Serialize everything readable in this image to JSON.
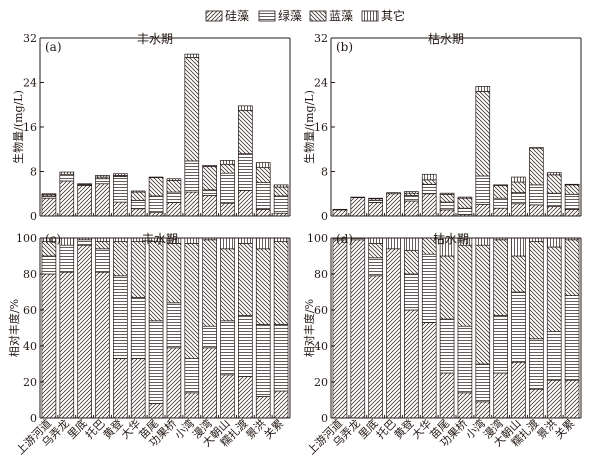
{
  "legend": {
    "items": [
      {
        "name": "硅藻",
        "pattern": "diag-fwd"
      },
      {
        "name": "绿藻",
        "pattern": "horiz"
      },
      {
        "name": "蓝藻",
        "pattern": "diag-back"
      },
      {
        "name": "其它",
        "pattern": "vert"
      }
    ]
  },
  "chart_data": [
    {
      "id": "a",
      "type": "bar",
      "stacked": true,
      "panel_label": "(a)",
      "title": "丰水期",
      "ylabel": "生物量/(mg/L)",
      "ylim": [
        0,
        32
      ],
      "yticks": [
        0,
        8,
        16,
        24,
        32
      ],
      "categories": [
        "上游河道",
        "乌弄龙",
        "里底",
        "托巴",
        "黄登",
        "大华",
        "苗尾",
        "功果桥",
        "小湾",
        "漫湾",
        "大朝山",
        "糯扎渡",
        "景洪",
        "关累"
      ],
      "series": [
        {
          "name": "硅藻",
          "values": [
            3.2,
            6.3,
            5.5,
            5.8,
            2.5,
            1.3,
            0.6,
            2.4,
            4.3,
            3.7,
            2.3,
            4.6,
            1.2,
            0.5
          ]
        },
        {
          "name": "绿藻",
          "values": [
            0.4,
            1.2,
            0.2,
            0.9,
            4.6,
            1.5,
            3.0,
            1.9,
            5.6,
            1.0,
            5.4,
            6.6,
            4.8,
            3.1
          ]
        },
        {
          "name": "蓝藻",
          "values": [
            0.3,
            0.0,
            0.0,
            0.3,
            0.2,
            1.5,
            3.3,
            2.1,
            18.6,
            4.2,
            1.6,
            7.8,
            2.7,
            1.6
          ]
        },
        {
          "name": "其它",
          "values": [
            0.1,
            0.4,
            0.1,
            0.3,
            0.3,
            0.2,
            0.1,
            0.3,
            0.6,
            0.2,
            0.7,
            0.8,
            0.9,
            0.4
          ]
        }
      ]
    },
    {
      "id": "b",
      "type": "bar",
      "stacked": true,
      "panel_label": "(b)",
      "title": "枯水期",
      "ylabel": "生物量/(mg/L)",
      "ylim": [
        0,
        32
      ],
      "yticks": [
        0,
        8,
        16,
        24,
        32
      ],
      "categories": [
        "上游河道",
        "乌弄龙",
        "里底",
        "托巴",
        "黄登",
        "大华",
        "苗尾",
        "功果桥",
        "小湾",
        "漫湾",
        "大朝山",
        "糯扎渡",
        "景洪",
        "关累"
      ],
      "series": [
        {
          "name": "硅藻",
          "values": [
            1.1,
            3.3,
            2.4,
            4.0,
            2.7,
            4.0,
            1.1,
            0.3,
            2.1,
            1.4,
            2.2,
            2.0,
            1.7,
            1.2
          ]
        },
        {
          "name": "绿藻",
          "values": [
            0.1,
            0.1,
            0.4,
            0.0,
            1.0,
            1.7,
            1.4,
            1.1,
            5.1,
            1.8,
            2.0,
            3.6,
            2.4,
            2.7
          ]
        },
        {
          "name": "蓝藻",
          "values": [
            0.0,
            0.0,
            0.3,
            0.0,
            0.4,
            0.8,
            1.4,
            1.8,
            15.2,
            2.3,
            1.9,
            6.6,
            3.3,
            1.7
          ]
        },
        {
          "name": "其它",
          "values": [
            0.0,
            0.0,
            0.1,
            0.2,
            0.3,
            1.0,
            0.2,
            0.2,
            0.9,
            0.1,
            0.9,
            0.1,
            0.4,
            0.1
          ]
        }
      ]
    },
    {
      "id": "c",
      "type": "bar",
      "stacked": true,
      "panel_label": "(c)",
      "title": "丰水期",
      "ylabel": "相对丰度/%",
      "ylim": [
        0,
        100
      ],
      "yticks": [
        0,
        20,
        40,
        60,
        80,
        100
      ],
      "categories": [
        "上游河道",
        "乌弄龙",
        "里底",
        "托巴",
        "黄登",
        "大华",
        "苗尾",
        "功果桥",
        "小湾",
        "漫湾",
        "大朝山",
        "糯扎渡",
        "景洪",
        "关累"
      ],
      "series": [
        {
          "name": "硅藻",
          "values": [
            80,
            81,
            96,
            81,
            33,
            33,
            8,
            39,
            14,
            39,
            24,
            23,
            12,
            15
          ]
        },
        {
          "name": "绿藻",
          "values": [
            10,
            15,
            3,
            13,
            46,
            34,
            46,
            25,
            19,
            12,
            30,
            34,
            40,
            37
          ]
        },
        {
          "name": "蓝藻",
          "values": [
            8,
            0,
            0,
            4,
            19,
            31,
            44,
            33,
            64,
            48,
            40,
            40,
            42,
            46
          ]
        },
        {
          "name": "其它",
          "values": [
            2,
            4,
            1,
            2,
            2,
            2,
            2,
            3,
            3,
            1,
            6,
            3,
            6,
            2
          ]
        }
      ]
    },
    {
      "id": "d",
      "type": "bar",
      "stacked": true,
      "panel_label": "(d)",
      "title": "枯水期",
      "ylabel": "相对丰度/%",
      "ylim": [
        0,
        100
      ],
      "yticks": [
        0,
        20,
        40,
        60,
        80,
        100
      ],
      "categories": [
        "上游河道",
        "乌弄龙",
        "里底",
        "托巴",
        "黄登",
        "大华",
        "苗尾",
        "功果桥",
        "小湾",
        "漫湾",
        "大朝山",
        "糯扎渡",
        "景洪",
        "关累"
      ],
      "series": [
        {
          "name": "硅藻",
          "values": [
            99,
            99,
            79,
            94,
            60,
            53,
            25,
            14,
            9,
            25,
            31,
            16,
            21,
            21
          ]
        },
        {
          "name": "绿藻",
          "values": [
            1,
            1,
            10,
            0,
            20,
            38,
            30,
            37,
            21,
            32,
            39,
            28,
            27,
            47
          ]
        },
        {
          "name": "蓝藻",
          "values": [
            0,
            0,
            8,
            0,
            13,
            9,
            35,
            45,
            66,
            42,
            20,
            54,
            47,
            31
          ]
        },
        {
          "name": "其它",
          "values": [
            0,
            0,
            3,
            6,
            7,
            0,
            10,
            4,
            4,
            1,
            10,
            2,
            5,
            1
          ]
        }
      ]
    }
  ]
}
